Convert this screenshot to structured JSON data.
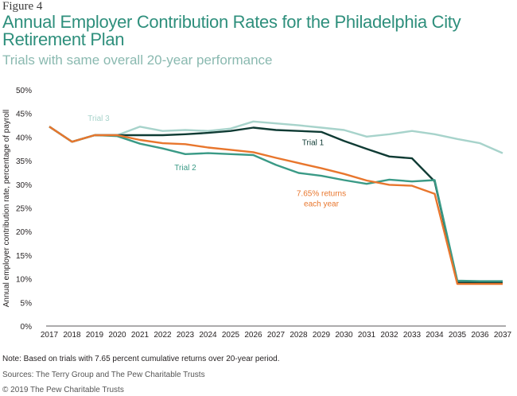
{
  "figure_label": "Figure 4",
  "title": "Annual Employer Contribution Rates for the Philadelphia City Retirement Plan",
  "subtitle": "Trials with same overall 20-year performance",
  "note": "Note: Based on trials with 7.65 percent cumulative returns over 20-year period.",
  "sources": "Sources: The Terry Group and The Pew Charitable Trusts",
  "copyright": "© 2019 The Pew Charitable Trusts",
  "colors": {
    "trial3": "#a7d3cb",
    "trial1": "#0f3b34",
    "trial2": "#3a9a86",
    "returns": "#e8762d",
    "axis_text": "#231f20",
    "gridline": "#d9d9d9"
  },
  "chart_data": {
    "type": "line",
    "ylabel": "Annual employer contribution rate, percentage of payroll",
    "xlabel": "",
    "ylim": [
      0,
      50
    ],
    "y_ticks": [
      "0%",
      "5%",
      "10%",
      "15%",
      "20%",
      "25%",
      "30%",
      "35%",
      "40%",
      "45%",
      "50%"
    ],
    "grid": false,
    "x": [
      "2017",
      "2018",
      "2019",
      "2020",
      "2021",
      "2022",
      "2023",
      "2024",
      "2025",
      "2026",
      "2027",
      "2028",
      "2029",
      "2030",
      "2031",
      "2032",
      "2033",
      "2034",
      "2035",
      "2036",
      "2037"
    ],
    "series": [
      {
        "name": "Trial 3",
        "color_key": "trial3",
        "values": [
          42.2,
          39.0,
          40.4,
          40.4,
          42.2,
          41.3,
          41.5,
          41.3,
          41.8,
          43.3,
          42.9,
          42.5,
          42.0,
          41.5,
          40.1,
          40.6,
          41.3,
          40.6,
          39.6,
          38.7,
          36.6
        ]
      },
      {
        "name": "Trial 1",
        "color_key": "trial1",
        "values": [
          42.2,
          39.0,
          40.4,
          40.4,
          40.4,
          40.4,
          40.6,
          40.9,
          41.3,
          42.0,
          41.5,
          41.3,
          41.1,
          39.2,
          37.5,
          35.9,
          35.5,
          30.6,
          9.2,
          9.2,
          9.2
        ]
      },
      {
        "name": "Trial 2",
        "color_key": "trial2",
        "values": [
          42.2,
          39.0,
          40.4,
          40.2,
          38.6,
          37.6,
          36.4,
          36.6,
          36.4,
          36.2,
          34.1,
          32.4,
          31.8,
          30.9,
          30.1,
          31.0,
          30.6,
          30.9,
          9.6,
          9.5,
          9.5
        ]
      },
      {
        "name": "7.65% returns each year",
        "color_key": "returns",
        "values": [
          42.2,
          39.0,
          40.4,
          40.4,
          39.4,
          38.7,
          38.5,
          37.8,
          37.3,
          36.8,
          35.6,
          34.5,
          33.4,
          32.2,
          30.8,
          29.9,
          29.7,
          28.0,
          8.9,
          8.9,
          8.9
        ]
      }
    ],
    "annotations": [
      {
        "series": "Trial 3",
        "text": "Trial 3"
      },
      {
        "series": "Trial 1",
        "text": "Trial 1"
      },
      {
        "series": "Trial 2",
        "text": "Trial 2"
      },
      {
        "series": "7.65% returns each year",
        "text": "7.65% returns",
        "text2": "each year"
      }
    ]
  }
}
